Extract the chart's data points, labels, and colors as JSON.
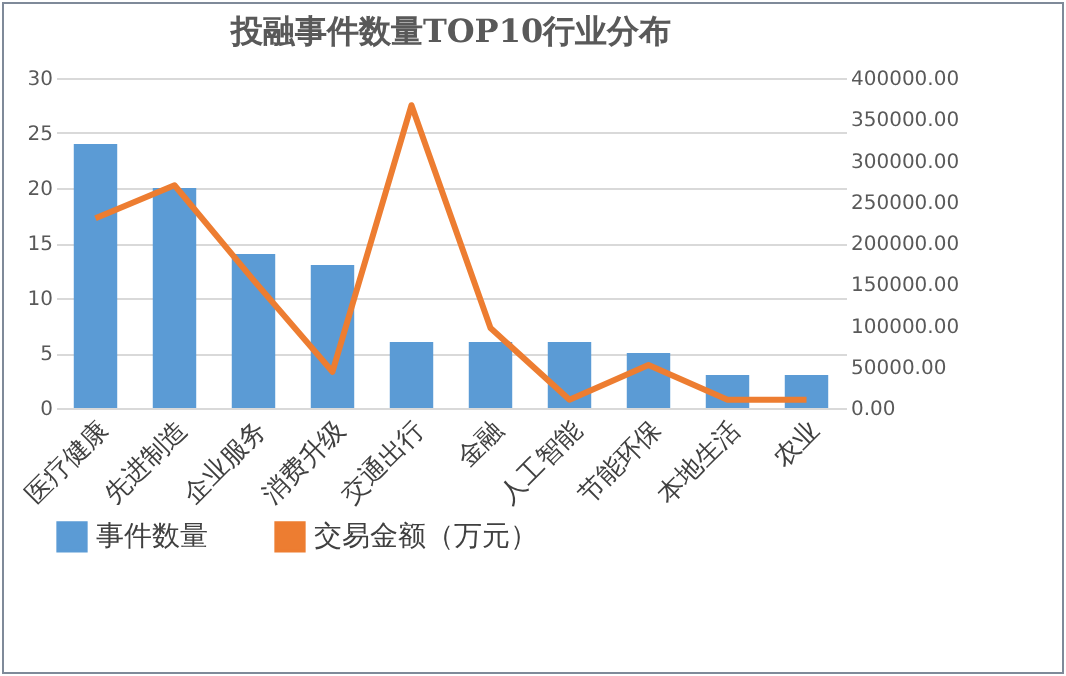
{
  "chart_data": {
    "type": "bar",
    "title": "投融事件数量TOP10行业分布",
    "categories": [
      "医疗健康",
      "先进制造",
      "企业服务",
      "消费升级",
      "交通出行",
      "金融",
      "人工智能",
      "节能环保",
      "本地生活",
      "农业"
    ],
    "series": [
      {
        "name": "事件数量",
        "color": "#5b9bd5",
        "values": [
          24,
          20,
          14,
          13,
          6,
          6,
          6,
          5,
          3,
          3
        ]
      },
      {
        "name": "交易金额（万元）",
        "type": "line",
        "axis": "y2",
        "color": "#ed7d31",
        "values": [
          230000,
          270000,
          155000,
          44000,
          367000,
          97000,
          10000,
          52000,
          10000,
          10000
        ]
      }
    ],
    "ylim": [
      0,
      30
    ],
    "yticks": [
      0,
      5,
      10,
      15,
      20,
      25,
      30
    ],
    "y2lim": [
      0,
      400000
    ],
    "y2ticks": [
      {
        "value": 0,
        "label": "0.00"
      },
      {
        "value": 50000,
        "label": "50000.00"
      },
      {
        "value": 100000,
        "label": "100000.00"
      },
      {
        "value": 150000,
        "label": "150000.00"
      },
      {
        "value": 200000,
        "label": "200000.00"
      },
      {
        "value": 250000,
        "label": "250000.00"
      },
      {
        "value": 300000,
        "label": "300000.00"
      },
      {
        "value": 350000,
        "label": "350000.00"
      },
      {
        "value": 400000,
        "label": "400000.00"
      }
    ],
    "grid": "y",
    "legend": "bottom",
    "marker": "none",
    "line_style": "solid"
  }
}
